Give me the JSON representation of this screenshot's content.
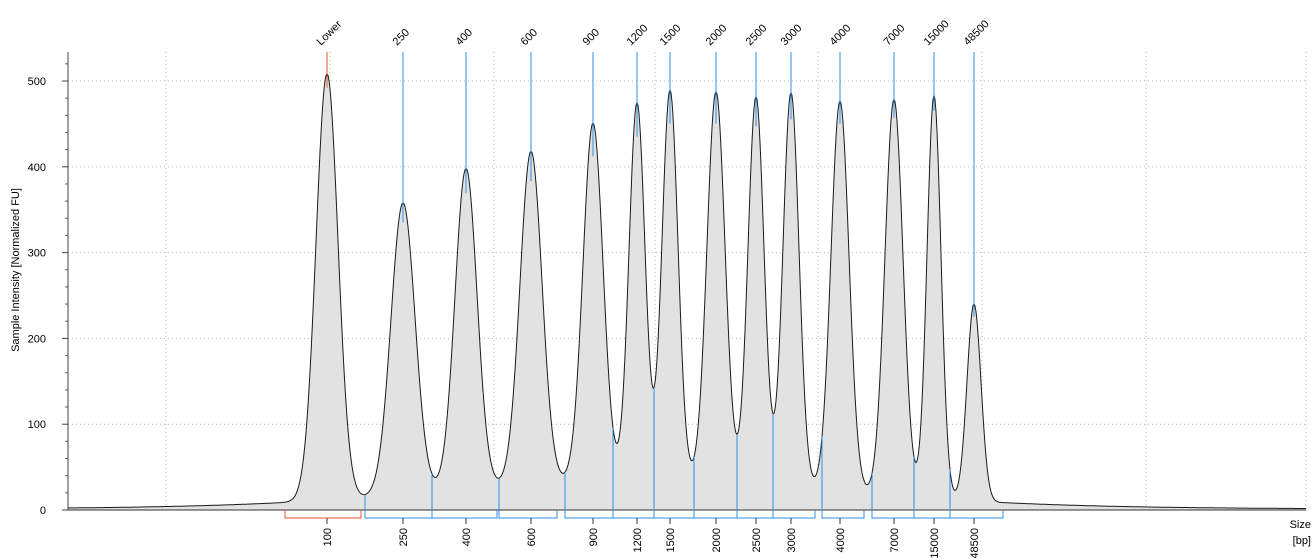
{
  "chart_data": {
    "type": "area",
    "title": "",
    "ylabel": "Sample Intensity [Normalized FU]",
    "xlabel": "Size",
    "xunit": "[bp]",
    "ylim": [
      0,
      530
    ],
    "yticks": [
      0,
      100,
      200,
      300,
      400,
      500
    ],
    "grid": true,
    "colors": {
      "trace": "#1a1a1a",
      "fill": "#e2e2e2",
      "marker": "#2f8fe6",
      "lower_marker": "#e8552b",
      "grid": "#b5b5b5"
    },
    "peaks": [
      {
        "label": "Lower",
        "size": 100,
        "height": 497,
        "sigma": 11,
        "marker": "lower"
      },
      {
        "label": "250",
        "size": 250,
        "height": 340,
        "sigma": 12,
        "marker": "ladder"
      },
      {
        "label": "400",
        "size": 400,
        "height": 374,
        "sigma": 11,
        "marker": "ladder"
      },
      {
        "label": "600",
        "size": 600,
        "height": 388,
        "sigma": 11,
        "marker": "ladder"
      },
      {
        "label": "900",
        "size": 900,
        "height": 417,
        "sigma": 10,
        "marker": "ladder"
      },
      {
        "label": "1200",
        "size": 1200,
        "height": 440,
        "sigma": 8,
        "marker": "ladder"
      },
      {
        "label": "1500",
        "size": 1500,
        "height": 455,
        "sigma": 8,
        "marker": "ladder"
      },
      {
        "label": "2000",
        "size": 2000,
        "height": 455,
        "sigma": 9,
        "marker": "ladder"
      },
      {
        "label": "2500",
        "size": 2500,
        "height": 452,
        "sigma": 8,
        "marker": "ladder"
      },
      {
        "label": "3000",
        "size": 3000,
        "height": 460,
        "sigma": 8,
        "marker": "ladder"
      },
      {
        "label": "4000",
        "size": 4000,
        "height": 455,
        "sigma": 9,
        "marker": "ladder"
      },
      {
        "label": "7000",
        "size": 7000,
        "height": 462,
        "sigma": 9,
        "marker": "ladder"
      },
      {
        "label": "15000",
        "size": 15000,
        "height": 470,
        "sigma": 7,
        "marker": "ladder"
      },
      {
        "label": "48500",
        "size": 48500,
        "height": 230,
        "sigma": 7,
        "marker": "ladder"
      }
    ],
    "bottom_labels": [
      "100",
      "250",
      "400",
      "600",
      "900",
      "1200",
      "1500",
      "2000",
      "2500",
      "3000",
      "4000",
      "7000",
      "15000",
      "48500"
    ]
  }
}
